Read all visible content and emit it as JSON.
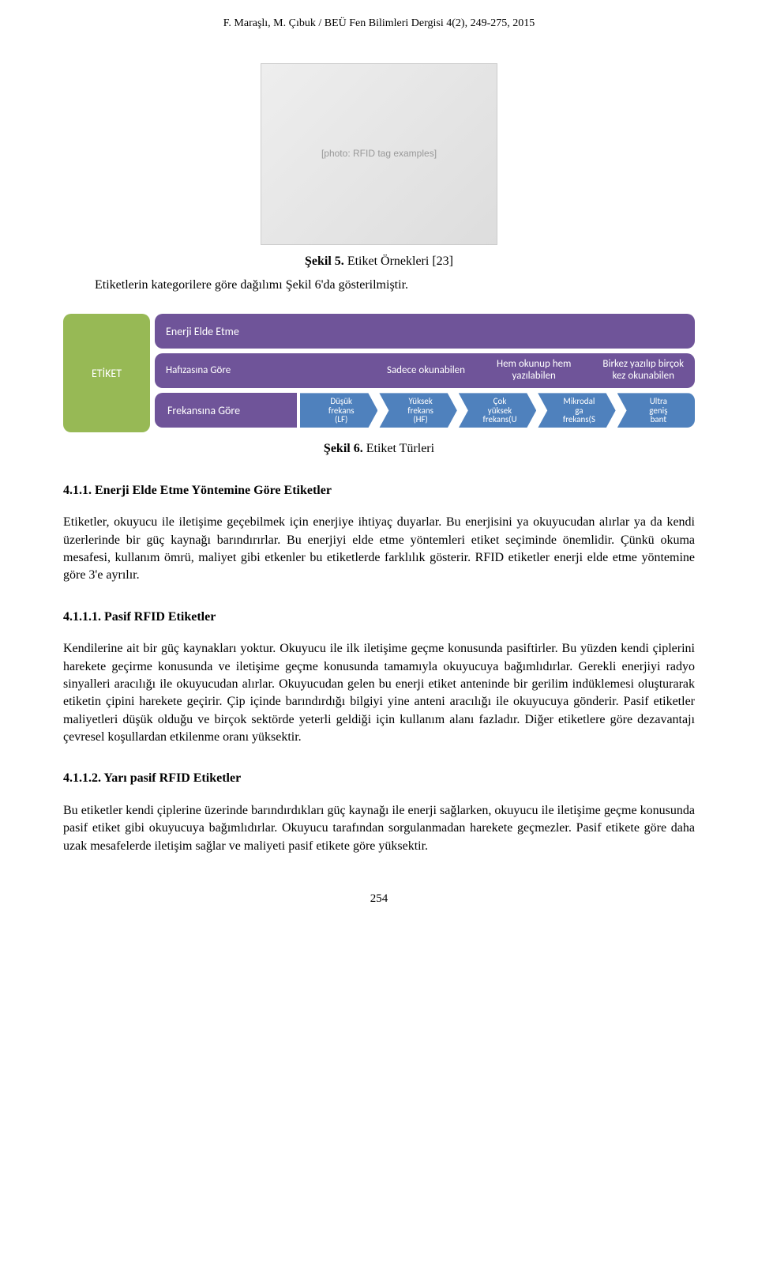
{
  "header": "F. Maraşlı, M. Çıbuk / BEÜ Fen Bilimleri Dergisi 4(2), 249-275, 2015",
  "fig5": {
    "caption_bold": "Şekil 5.",
    "caption_rest": " Etiket Örnekleri [23]",
    "below_text": "Etiketlerin kategorilere göre dağılımı Şekil 6'da gösterilmiştir.",
    "placeholder_note": "[photo: RFID tag examples]"
  },
  "diagram": {
    "etiket_label": "ETİKET",
    "etiket_bg": "#97b955",
    "pill_bg": "#6f5499",
    "row1_label": "Enerji Elde Etme",
    "row2_label": "Hafızasına Göre",
    "row2_opt1_line1": "Sadece okunabilen",
    "row2_opt2_line1": "Hem okunup hem",
    "row2_opt2_line2": "yazılabilen",
    "row2_opt3_line1": "Birkez yazılıp birçok",
    "row2_opt3_line2": "kez okunabilen",
    "row3_label": "Frekansına Göre",
    "chev_bg": "#4f81bd",
    "chevrons": [
      {
        "l1": "Düşük",
        "l2": "frekans",
        "l3": "(LF)"
      },
      {
        "l1": "Yüksek",
        "l2": "frekans",
        "l3": "(HF)"
      },
      {
        "l1": "Çok",
        "l2": "yüksek",
        "l3": "frekans(U"
      },
      {
        "l1": "Mikrodal",
        "l2": "ga",
        "l3": "frekans(S"
      },
      {
        "l1": "Ultra",
        "l2": "geniş",
        "l3": "bant"
      }
    ]
  },
  "fig6": {
    "caption_bold": "Şekil 6.",
    "caption_rest": " Etiket Türleri"
  },
  "sec_4_1_1": {
    "heading": "4.1.1. Enerji Elde Etme Yöntemine Göre Etiketler",
    "para": "Etiketler, okuyucu ile iletişime geçebilmek için enerjiye ihtiyaç duyarlar. Bu enerjisini ya okuyucudan alırlar ya da kendi üzerlerinde bir güç kaynağı barındırırlar. Bu enerjiyi elde etme yöntemleri etiket seçiminde önemlidir. Çünkü okuma mesafesi, kullanım ömrü, maliyet gibi etkenler bu etiketlerde farklılık gösterir. RFID etiketler enerji elde etme yöntemine göre 3'e ayrılır."
  },
  "sec_4_1_1_1": {
    "heading": "4.1.1.1. Pasif RFID Etiketler",
    "para": "Kendilerine ait bir güç kaynakları yoktur. Okuyucu ile ilk iletişime geçme konusunda pasiftirler. Bu yüzden kendi çiplerini harekete geçirme konusunda ve iletişime geçme konusunda tamamıyla okuyucuya bağımlıdırlar. Gerekli enerjiyi radyo sinyalleri aracılığı ile okuyucudan alırlar. Okuyucudan gelen bu enerji etiket anteninde bir gerilim indüklemesi oluşturarak etiketin çipini harekete geçirir. Çip içinde barındırdığı bilgiyi yine anteni aracılığı ile okuyucuya gönderir. Pasif etiketler maliyetleri düşük olduğu ve birçok sektörde yeterli geldiği için kullanım alanı fazladır. Diğer etiketlere göre dezavantajı çevresel koşullardan etkilenme oranı yüksektir."
  },
  "sec_4_1_1_2": {
    "heading": "4.1.1.2. Yarı pasif RFID Etiketler",
    "para": "Bu etiketler kendi çiplerine üzerinde barındırdıkları güç kaynağı ile enerji sağlarken, okuyucu ile iletişime geçme konusunda pasif etiket gibi okuyucuya bağımlıdırlar. Okuyucu tarafından sorgulanmadan harekete geçmezler. Pasif etikete göre daha uzak mesafelerde iletişim sağlar ve maliyeti pasif etikete göre yüksektir."
  },
  "page_number": "254"
}
